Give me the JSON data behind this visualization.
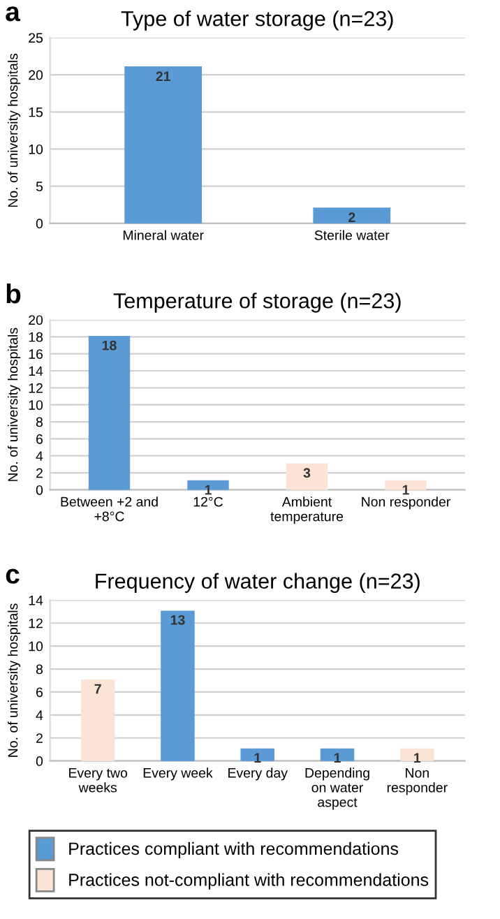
{
  "chart_data": [
    {
      "type": "bar",
      "title": "Type of water storage (n=23)",
      "ylabel": "No. of university hospitals",
      "annotations": [
        "a"
      ],
      "categories": [
        "Mineral water",
        "Sterile water"
      ],
      "values": [
        21,
        2
      ],
      "colors": [
        "#5b9bd5",
        "#5b9bd5"
      ],
      "ylim": [
        0,
        25
      ],
      "yticks": [
        0,
        5,
        10,
        15,
        20,
        25
      ],
      "grid": "y",
      "data_labels": true
    },
    {
      "type": "bar",
      "title": "Temperature of storage (n=23)",
      "ylabel": "No. of university hospitals",
      "annotations": [
        "b"
      ],
      "categories": [
        "Between +2 and\n+8°C",
        "12°C",
        "Ambient\ntemperature",
        "Non responder"
      ],
      "values": [
        18,
        1,
        3,
        1
      ],
      "colors": [
        "#5b9bd5",
        "#5b9bd5",
        "#fbe3d6",
        "#fbe3d6"
      ],
      "ylim": [
        0,
        20
      ],
      "yticks": [
        0,
        2,
        4,
        6,
        8,
        10,
        12,
        14,
        16,
        18,
        20
      ],
      "grid": "y",
      "data_labels": true
    },
    {
      "type": "bar",
      "title": "Frequency of water change (n=23)",
      "ylabel": "No. of university hospitals",
      "annotations": [
        "c"
      ],
      "categories": [
        "Every two\nweeks",
        "Every week",
        "Every day",
        "Depending\non water\naspect",
        "Non\nresponder"
      ],
      "series": [
        {
          "name": "Practices compliant with recommendations",
          "color": "#5b9bd5",
          "values": [
            null,
            13,
            1,
            1,
            null
          ]
        },
        {
          "name": "Practices not-compliant with recommendations",
          "color": "#fbe3d6",
          "values": [
            7,
            null,
            null,
            null,
            1
          ]
        }
      ],
      "ylim": [
        0,
        14
      ],
      "yticks": [
        0,
        2,
        4,
        6,
        8,
        10,
        12,
        14
      ],
      "grid": "y",
      "data_labels": true,
      "legend": "bottom"
    }
  ]
}
